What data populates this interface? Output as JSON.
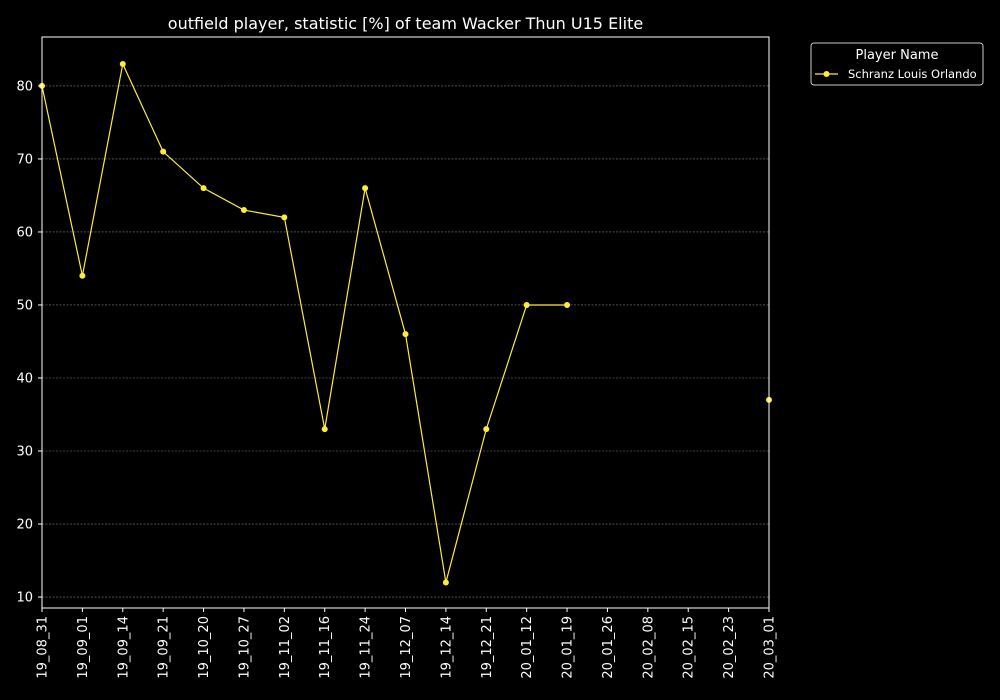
{
  "chart_data": {
    "type": "line",
    "title": "outfield player, statistic [%] of team Wacker Thun U15 Elite",
    "xlabel": "",
    "ylabel": "",
    "categories": [
      "19_08_31",
      "19_09_01",
      "19_09_14",
      "19_09_21",
      "19_10_20",
      "19_10_27",
      "19_11_02",
      "19_11_16",
      "19_11_24",
      "19_12_07",
      "19_12_14",
      "19_12_21",
      "20_01_12",
      "20_01_19",
      "20_01_26",
      "20_02_08",
      "20_02_15",
      "20_02_23",
      "20_03_01"
    ],
    "series": [
      {
        "name": "Schranz Louis Orlando",
        "color": "#ffeb3b",
        "values": [
          80,
          54,
          83,
          71,
          66,
          63,
          62,
          33,
          66,
          46,
          12,
          33,
          50,
          50,
          null,
          null,
          null,
          null,
          37
        ]
      }
    ],
    "ylim": [
      8.5,
      86.7
    ],
    "yticks": [
      10,
      20,
      30,
      40,
      50,
      60,
      70,
      80
    ],
    "grid": true,
    "legend": {
      "title": "Player Name",
      "placement": "outside-top-right"
    },
    "background": "#000000",
    "axis_color": "#ffffff",
    "grid_color": "#808080"
  }
}
